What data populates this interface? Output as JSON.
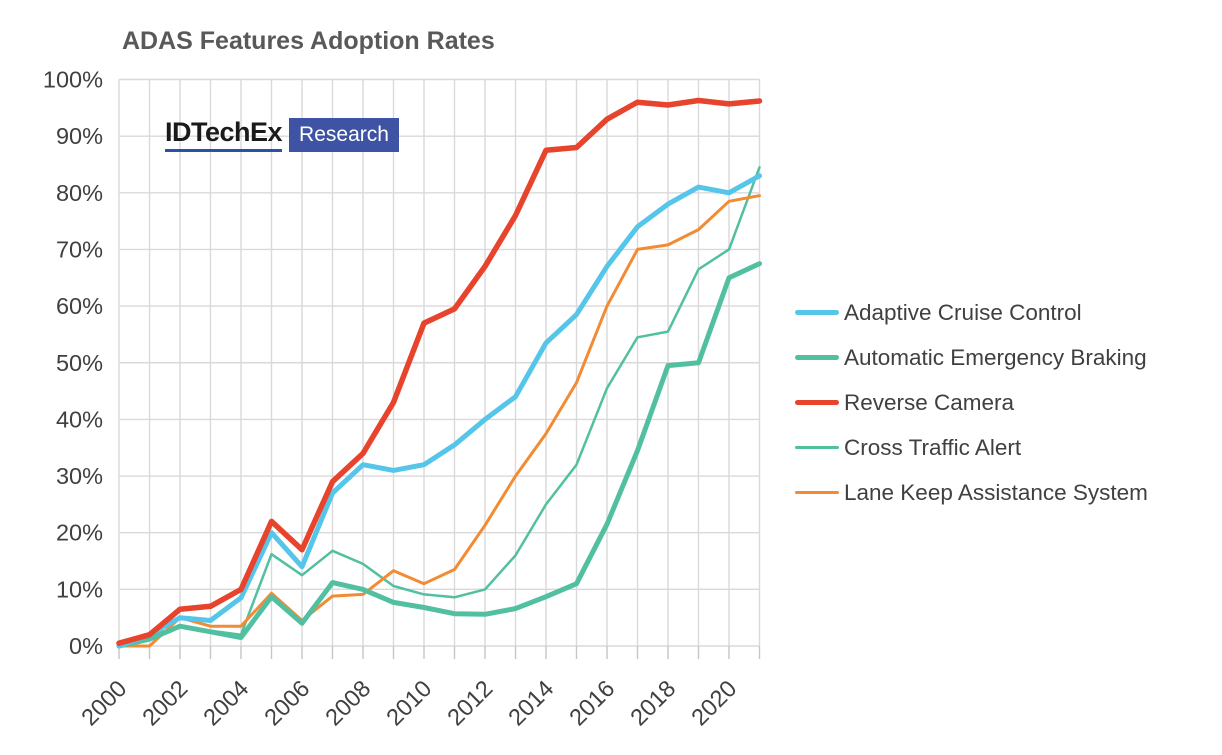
{
  "title": "ADAS Features Adoption Rates",
  "logo": {
    "brand": "IDTechEx",
    "suffix": "Research",
    "accent_color": "#3e53a3",
    "underline_color": "#2b51a8"
  },
  "axes": {
    "y": {
      "tick_labels": [
        "0%",
        "10%",
        "20%",
        "30%",
        "40%",
        "50%",
        "60%",
        "70%",
        "80%",
        "90%",
        "100%"
      ],
      "label_color": "#404040"
    },
    "x": {
      "tick_labels": [
        "2000",
        "2002",
        "2004",
        "2006",
        "2008",
        "2010",
        "2012",
        "2014",
        "2016",
        "2018",
        "2020"
      ],
      "label_color": "#404040"
    },
    "gridline_color": "#d9d9d9",
    "tick_color": "#c6c6c6"
  },
  "legend": {
    "position": "right",
    "items": [
      {
        "label": "Adaptive Cruise Control",
        "color": "#56c5ea",
        "thickness": 5
      },
      {
        "label": "Automatic Emergency Braking",
        "color": "#52c0a0",
        "thickness": 5
      },
      {
        "label": "Reverse Camera",
        "color": "#e8432c",
        "thickness": 5.5
      },
      {
        "label": "Cross Traffic Alert",
        "color": "#52c0a0",
        "thickness": 2.5
      },
      {
        "label": "Lane Keep Assistance System",
        "color": "#f28b33",
        "thickness": 3
      }
    ]
  },
  "chart_data": {
    "type": "line",
    "title": "ADAS Features Adoption Rates",
    "xlabel": "",
    "ylabel": "",
    "ylim": [
      0,
      100
    ],
    "y_tick_step": 10,
    "y_unit": "%",
    "grid": true,
    "legend_position": "right",
    "x": [
      2000,
      2001,
      2002,
      2003,
      2004,
      2005,
      2006,
      2007,
      2008,
      2009,
      2010,
      2011,
      2012,
      2013,
      2014,
      2015,
      2016,
      2017,
      2018,
      2019,
      2020,
      2021
    ],
    "x_tick_years": [
      2000,
      2002,
      2004,
      2006,
      2008,
      2010,
      2012,
      2014,
      2016,
      2018,
      2020
    ],
    "series": [
      {
        "name": "Cross Traffic Alert",
        "color": "#52c0a0",
        "width": 2.5,
        "values": [
          0,
          1.8,
          3.5,
          2.7,
          2,
          16.2,
          12.5,
          16.8,
          14.5,
          10.6,
          9.1,
          8.6,
          10,
          16,
          25,
          32,
          45.5,
          54.5,
          55.5,
          66.5,
          70,
          84.5
        ]
      },
      {
        "name": "Lane Keep Assistance System",
        "color": "#f28b33",
        "width": 3,
        "values": [
          0,
          0,
          5,
          3.5,
          3.5,
          9.3,
          4.5,
          8.8,
          9.1,
          13.3,
          11,
          13.5,
          21.3,
          30,
          37.5,
          46.5,
          60,
          70,
          70.8,
          73.5,
          78.5,
          79.5
        ]
      },
      {
        "name": "Automatic Emergency Braking",
        "color": "#52c0a0",
        "width": 5,
        "values": [
          0,
          1.2,
          3.5,
          2.5,
          1.5,
          8.7,
          4,
          11.2,
          10,
          7.7,
          6.8,
          5.7,
          5.6,
          6.6,
          8.7,
          11,
          21.5,
          34.5,
          49.5,
          50,
          65,
          67.5
        ]
      },
      {
        "name": "Adaptive Cruise Control",
        "color": "#56c5ea",
        "width": 5,
        "values": [
          0,
          2,
          5,
          4.5,
          8.5,
          20,
          14,
          27,
          32,
          31,
          32,
          35.5,
          40,
          44,
          53.5,
          58.5,
          67,
          74,
          78,
          81,
          80,
          83
        ]
      },
      {
        "name": "Reverse Camera",
        "color": "#e8432c",
        "width": 5.5,
        "values": [
          0.5,
          2,
          6.5,
          7,
          10,
          22,
          17,
          29,
          34,
          43,
          57,
          59.5,
          67,
          76,
          87.5,
          88,
          93,
          96,
          95.5,
          96.3,
          95.7,
          96.2
        ]
      }
    ]
  }
}
